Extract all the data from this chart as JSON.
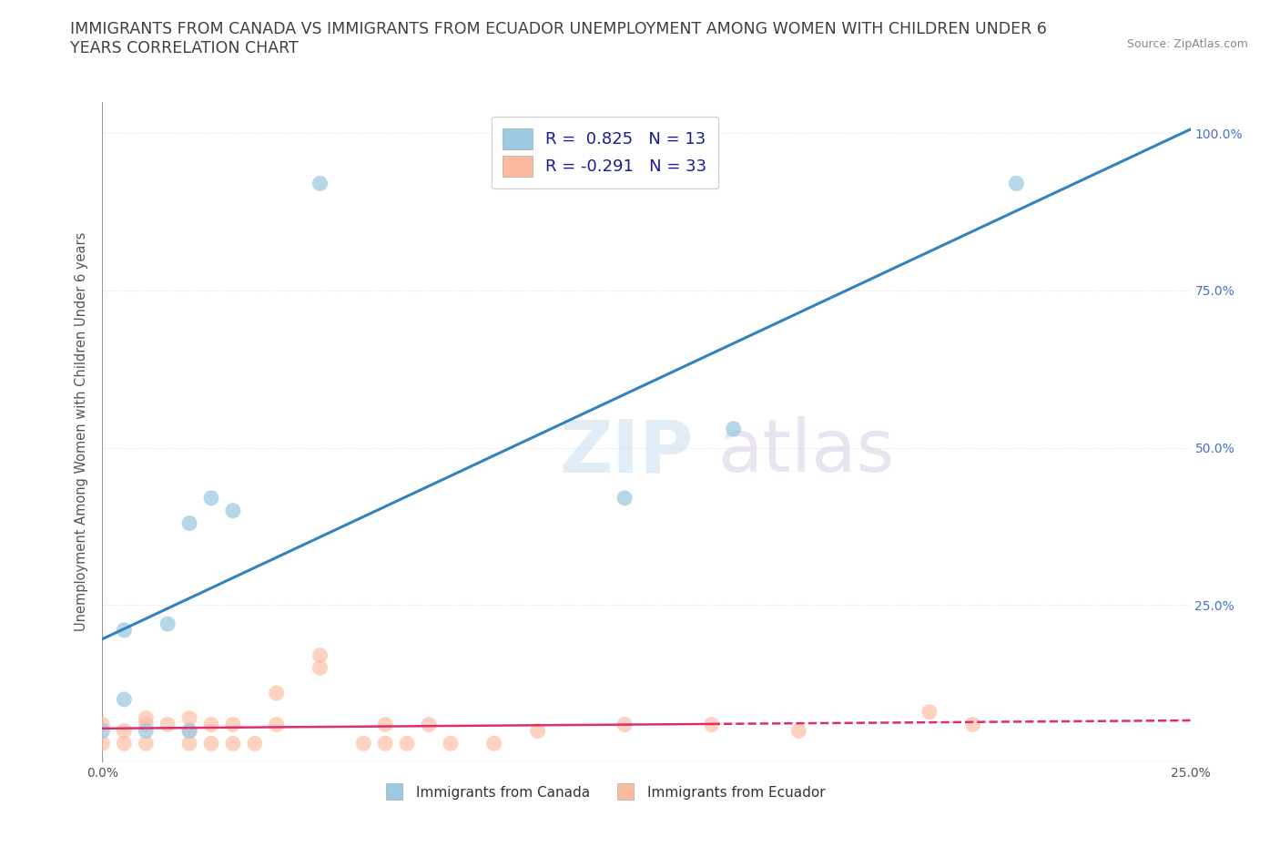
{
  "title": "IMMIGRANTS FROM CANADA VS IMMIGRANTS FROM ECUADOR UNEMPLOYMENT AMONG WOMEN WITH CHILDREN UNDER 6\nYEARS CORRELATION CHART",
  "source": "Source: ZipAtlas.com",
  "ylabel": "Unemployment Among Women with Children Under 6 years",
  "xlim": [
    0.0,
    0.25
  ],
  "ylim": [
    0.0,
    1.05
  ],
  "xticks": [
    0.0,
    0.05,
    0.1,
    0.15,
    0.2,
    0.25
  ],
  "yticks": [
    0.0,
    0.25,
    0.5,
    0.75,
    1.0
  ],
  "canada_color": "#9ecae1",
  "ecuador_color": "#fcbba1",
  "canada_line_color": "#3182bd",
  "ecuador_line_color": "#de2d6d",
  "canada_scatter_x": [
    0.0,
    0.005,
    0.01,
    0.015,
    0.02,
    0.025,
    0.03,
    0.05,
    0.12,
    0.145,
    0.21,
    0.005,
    0.02
  ],
  "canada_scatter_y": [
    0.05,
    0.21,
    0.05,
    0.22,
    0.38,
    0.42,
    0.4,
    0.92,
    0.42,
    0.53,
    0.92,
    0.1,
    0.05
  ],
  "ecuador_scatter_x": [
    0.0,
    0.0,
    0.005,
    0.005,
    0.01,
    0.01,
    0.01,
    0.015,
    0.02,
    0.02,
    0.02,
    0.025,
    0.025,
    0.03,
    0.03,
    0.035,
    0.04,
    0.04,
    0.05,
    0.05,
    0.06,
    0.065,
    0.065,
    0.07,
    0.075,
    0.08,
    0.09,
    0.1,
    0.12,
    0.14,
    0.16,
    0.19,
    0.2
  ],
  "ecuador_scatter_y": [
    0.03,
    0.06,
    0.03,
    0.05,
    0.03,
    0.06,
    0.07,
    0.06,
    0.03,
    0.05,
    0.07,
    0.03,
    0.06,
    0.03,
    0.06,
    0.03,
    0.06,
    0.11,
    0.15,
    0.17,
    0.03,
    0.03,
    0.06,
    0.03,
    0.06,
    0.03,
    0.03,
    0.05,
    0.06,
    0.06,
    0.05,
    0.08,
    0.06
  ],
  "background_color": "#ffffff",
  "grid_color": "#e0e0e0",
  "title_color": "#404040",
  "title_fontsize": 12.5,
  "axis_label_fontsize": 10.5,
  "tick_fontsize": 10,
  "source_fontsize": 9,
  "legend_fontsize": 13,
  "right_tick_color": "#4472c4"
}
